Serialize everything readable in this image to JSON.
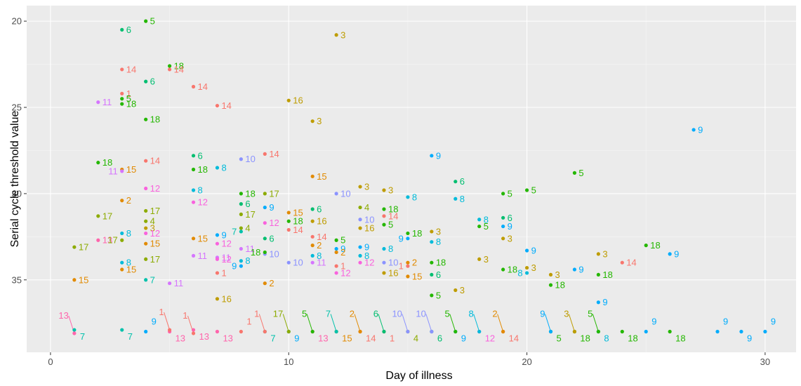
{
  "chart_data": {
    "type": "scatter",
    "title": "",
    "xlabel": "Day of illness",
    "ylabel": "Serial cycle threshold value",
    "xlim": [
      -1,
      31.3
    ],
    "ylim": [
      19.1,
      39.2
    ],
    "y_reversed": true,
    "x_ticks": [
      0,
      10,
      20,
      30
    ],
    "y_ticks": [
      20,
      25,
      30,
      35
    ],
    "grid": true,
    "legend": "none",
    "point_label_field": "patient",
    "colors": {
      "1": "#F8766D",
      "2": "#E18A00",
      "3": "#BE9C00",
      "4": "#8CAB00",
      "5": "#24B700",
      "6": "#00BE70",
      "7": "#00C1AB",
      "8": "#00BBDA",
      "9": "#00ACFC",
      "10": "#8B93FF",
      "11": "#D575FE",
      "12": "#F962DD",
      "13": "#FF65AC",
      "14": "#F8766D",
      "15": "#E18A00",
      "16": "#BE9C00",
      "17": "#8CAB00",
      "18": "#24B700"
    },
    "points": [
      {
        "x": 3,
        "y": 20.5,
        "patient": "6"
      },
      {
        "x": 4,
        "y": 20.0,
        "patient": "5"
      },
      {
        "x": 12,
        "y": 20.8,
        "patient": "3"
      },
      {
        "x": 3,
        "y": 22.8,
        "patient": "14"
      },
      {
        "x": 5,
        "y": 22.6,
        "patient": "18"
      },
      {
        "x": 5,
        "y": 22.8,
        "patient": "14"
      },
      {
        "x": 4,
        "y": 23.5,
        "patient": "6"
      },
      {
        "x": 6,
        "y": 23.8,
        "patient": "14"
      },
      {
        "x": 3,
        "y": 24.2,
        "patient": "1"
      },
      {
        "x": 3,
        "y": 24.5,
        "patient": "5"
      },
      {
        "x": 2,
        "y": 24.7,
        "patient": "11"
      },
      {
        "x": 3,
        "y": 24.8,
        "patient": "18"
      },
      {
        "x": 7,
        "y": 24.9,
        "patient": "14"
      },
      {
        "x": 10,
        "y": 24.6,
        "patient": "16"
      },
      {
        "x": 4,
        "y": 25.7,
        "patient": "18"
      },
      {
        "x": 11,
        "y": 25.8,
        "patient": "3"
      },
      {
        "x": 27,
        "y": 26.3,
        "patient": "9"
      },
      {
        "x": 6,
        "y": 27.8,
        "patient": "6"
      },
      {
        "x": 9,
        "y": 27.7,
        "patient": "14"
      },
      {
        "x": 8,
        "y": 28.0,
        "patient": "10"
      },
      {
        "x": 2,
        "y": 28.2,
        "patient": "18"
      },
      {
        "x": 4,
        "y": 28.1,
        "patient": "14"
      },
      {
        "x": 16,
        "y": 27.8,
        "patient": "9"
      },
      {
        "x": 3,
        "y": 28.6,
        "patient": "15"
      },
      {
        "x": 6,
        "y": 28.6,
        "patient": "18"
      },
      {
        "x": 7,
        "y": 28.5,
        "patient": "8"
      },
      {
        "x": 3,
        "y": 28.7,
        "patient": "11"
      },
      {
        "x": 22,
        "y": 28.8,
        "patient": "5"
      },
      {
        "x": 11,
        "y": 29.0,
        "patient": "15"
      },
      {
        "x": 17,
        "y": 29.3,
        "patient": "6"
      },
      {
        "x": 4,
        "y": 29.7,
        "patient": "12"
      },
      {
        "x": 6,
        "y": 29.8,
        "patient": "8"
      },
      {
        "x": 13,
        "y": 29.6,
        "patient": "3"
      },
      {
        "x": 14,
        "y": 29.8,
        "patient": "3"
      },
      {
        "x": 20,
        "y": 29.8,
        "patient": "5"
      },
      {
        "x": 19,
        "y": 30.0,
        "patient": "5"
      },
      {
        "x": 12,
        "y": 30.0,
        "patient": "10"
      },
      {
        "x": 8,
        "y": 30.0,
        "patient": "18"
      },
      {
        "x": 9,
        "y": 30.0,
        "patient": "17"
      },
      {
        "x": 15,
        "y": 30.2,
        "patient": "8"
      },
      {
        "x": 17,
        "y": 30.3,
        "patient": "8"
      },
      {
        "x": 3,
        "y": 30.4,
        "patient": "2"
      },
      {
        "x": 6,
        "y": 30.5,
        "patient": "12"
      },
      {
        "x": 8,
        "y": 30.6,
        "patient": "6"
      },
      {
        "x": 9,
        "y": 30.8,
        "patient": "9"
      },
      {
        "x": 13,
        "y": 30.8,
        "patient": "4"
      },
      {
        "x": 14,
        "y": 30.9,
        "patient": "18"
      },
      {
        "x": 4,
        "y": 31.0,
        "patient": "17"
      },
      {
        "x": 10,
        "y": 31.1,
        "patient": "15"
      },
      {
        "x": 11,
        "y": 30.9,
        "patient": "6"
      },
      {
        "x": 8,
        "y": 31.2,
        "patient": "17"
      },
      {
        "x": 2,
        "y": 31.3,
        "patient": "17"
      },
      {
        "x": 19,
        "y": 31.4,
        "patient": "6"
      },
      {
        "x": 13,
        "y": 31.5,
        "patient": "10"
      },
      {
        "x": 14,
        "y": 31.3,
        "patient": "14"
      },
      {
        "x": 18,
        "y": 31.5,
        "patient": "8"
      },
      {
        "x": 4,
        "y": 31.6,
        "patient": "4"
      },
      {
        "x": 10,
        "y": 31.6,
        "patient": "18"
      },
      {
        "x": 9,
        "y": 31.7,
        "patient": "12"
      },
      {
        "x": 11,
        "y": 31.6,
        "patient": "16"
      },
      {
        "x": 14,
        "y": 31.8,
        "patient": "5"
      },
      {
        "x": 18,
        "y": 31.9,
        "patient": "5"
      },
      {
        "x": 19,
        "y": 31.9,
        "patient": "9"
      },
      {
        "x": 8,
        "y": 32.0,
        "patient": "4"
      },
      {
        "x": 4,
        "y": 32.0,
        "patient": "3"
      },
      {
        "x": 8,
        "y": 32.2,
        "patient": "7"
      },
      {
        "x": 7,
        "y": 32.4,
        "patient": "9"
      },
      {
        "x": 4,
        "y": 32.3,
        "patient": "12"
      },
      {
        "x": 3,
        "y": 32.3,
        "patient": "8"
      },
      {
        "x": 10,
        "y": 32.1,
        "patient": "14"
      },
      {
        "x": 13,
        "y": 32.0,
        "patient": "16"
      },
      {
        "x": 15,
        "y": 32.3,
        "patient": "18"
      },
      {
        "x": 16,
        "y": 32.2,
        "patient": "3"
      },
      {
        "x": 2,
        "y": 32.7,
        "patient": "13"
      },
      {
        "x": 3,
        "y": 32.7,
        "patient": "17"
      },
      {
        "x": 6,
        "y": 32.6,
        "patient": "15"
      },
      {
        "x": 9,
        "y": 32.6,
        "patient": "6"
      },
      {
        "x": 11,
        "y": 32.5,
        "patient": "14"
      },
      {
        "x": 12,
        "y": 32.7,
        "patient": "5"
      },
      {
        "x": 15,
        "y": 32.6,
        "patient": "9"
      },
      {
        "x": 16,
        "y": 32.8,
        "patient": "8"
      },
      {
        "x": 19,
        "y": 32.6,
        "patient": "3"
      },
      {
        "x": 1,
        "y": 33.1,
        "patient": "17"
      },
      {
        "x": 4,
        "y": 32.9,
        "patient": "15"
      },
      {
        "x": 7,
        "y": 32.9,
        "patient": "12"
      },
      {
        "x": 11,
        "y": 33.0,
        "patient": "2"
      },
      {
        "x": 12,
        "y": 33.2,
        "patient": "9"
      },
      {
        "x": 13,
        "y": 33.1,
        "patient": "9"
      },
      {
        "x": 14,
        "y": 33.2,
        "patient": "8"
      },
      {
        "x": 20,
        "y": 33.3,
        "patient": "9"
      },
      {
        "x": 25,
        "y": 33.0,
        "patient": "18"
      },
      {
        "x": 8,
        "y": 33.2,
        "patient": "11"
      },
      {
        "x": 9,
        "y": 33.5,
        "patient": "10"
      },
      {
        "x": 9,
        "y": 33.4,
        "patient": "18"
      },
      {
        "x": 12,
        "y": 33.4,
        "patient": "2"
      },
      {
        "x": 13,
        "y": 33.6,
        "patient": "8"
      },
      {
        "x": 11,
        "y": 33.6,
        "patient": "8"
      },
      {
        "x": 23,
        "y": 33.5,
        "patient": "3"
      },
      {
        "x": 26,
        "y": 33.5,
        "patient": "9"
      },
      {
        "x": 4,
        "y": 33.8,
        "patient": "17"
      },
      {
        "x": 6,
        "y": 33.6,
        "patient": "11"
      },
      {
        "x": 7,
        "y": 33.7,
        "patient": "11"
      },
      {
        "x": 7,
        "y": 33.8,
        "patient": "12"
      },
      {
        "x": 3,
        "y": 34.0,
        "patient": "8"
      },
      {
        "x": 8,
        "y": 33.9,
        "patient": "8"
      },
      {
        "x": 10,
        "y": 34.0,
        "patient": "10"
      },
      {
        "x": 11,
        "y": 34.0,
        "patient": "11"
      },
      {
        "x": 13,
        "y": 34.0,
        "patient": "12"
      },
      {
        "x": 14,
        "y": 34.0,
        "patient": "10"
      },
      {
        "x": 15,
        "y": 34.0,
        "patient": "2"
      },
      {
        "x": 16,
        "y": 34.0,
        "patient": "18"
      },
      {
        "x": 18,
        "y": 33.8,
        "patient": "3"
      },
      {
        "x": 24,
        "y": 34.0,
        "patient": "14"
      },
      {
        "x": 3,
        "y": 34.4,
        "patient": "15"
      },
      {
        "x": 8,
        "y": 34.2,
        "patient": "9"
      },
      {
        "x": 12,
        "y": 34.2,
        "patient": "1"
      },
      {
        "x": 15,
        "y": 34.2,
        "patient": "1"
      },
      {
        "x": 19,
        "y": 34.4,
        "patient": "18"
      },
      {
        "x": 22,
        "y": 34.4,
        "patient": "9"
      },
      {
        "x": 20,
        "y": 34.3,
        "patient": "3"
      },
      {
        "x": 7,
        "y": 34.6,
        "patient": "1"
      },
      {
        "x": 12,
        "y": 34.6,
        "patient": "12"
      },
      {
        "x": 14,
        "y": 34.6,
        "patient": "16"
      },
      {
        "x": 15,
        "y": 34.8,
        "patient": "15"
      },
      {
        "x": 16,
        "y": 34.7,
        "patient": "6"
      },
      {
        "x": 20,
        "y": 34.6,
        "patient": "8"
      },
      {
        "x": 21,
        "y": 34.7,
        "patient": "3"
      },
      {
        "x": 23,
        "y": 34.7,
        "patient": "18"
      },
      {
        "x": 1,
        "y": 35.0,
        "patient": "15"
      },
      {
        "x": 4,
        "y": 35.0,
        "patient": "7"
      },
      {
        "x": 5,
        "y": 35.2,
        "patient": "11"
      },
      {
        "x": 9,
        "y": 35.2,
        "patient": "2"
      },
      {
        "x": 21,
        "y": 35.3,
        "patient": "18"
      },
      {
        "x": 17,
        "y": 35.6,
        "patient": "3"
      },
      {
        "x": 7,
        "y": 36.1,
        "patient": "16"
      },
      {
        "x": 16,
        "y": 35.9,
        "patient": "5"
      },
      {
        "x": 23,
        "y": 36.3,
        "patient": "9"
      },
      {
        "x": 1,
        "y": 37.9,
        "patient": "7"
      },
      {
        "x": 1,
        "y": 38.1,
        "patient": "13"
      },
      {
        "x": 3,
        "y": 37.9,
        "patient": "7"
      },
      {
        "x": 4,
        "y": 38.0,
        "patient": "9"
      },
      {
        "x": 5,
        "y": 38.0,
        "patient": "13"
      },
      {
        "x": 5,
        "y": 37.9,
        "patient": "1"
      },
      {
        "x": 6,
        "y": 37.9,
        "patient": "13"
      },
      {
        "x": 6,
        "y": 38.1,
        "patient": "1"
      },
      {
        "x": 7,
        "y": 38.0,
        "patient": "13"
      },
      {
        "x": 8,
        "y": 38.0,
        "patient": "1"
      },
      {
        "x": 9,
        "y": 38.0,
        "patient": "7"
      },
      {
        "x": 9,
        "y": 38.0,
        "patient": "1"
      },
      {
        "x": 10,
        "y": 38.0,
        "patient": "9"
      },
      {
        "x": 10,
        "y": 38.0,
        "patient": "17"
      },
      {
        "x": 11,
        "y": 38.0,
        "patient": "13"
      },
      {
        "x": 11,
        "y": 38.0,
        "patient": "5"
      },
      {
        "x": 12,
        "y": 38.0,
        "patient": "15"
      },
      {
        "x": 12,
        "y": 38.0,
        "patient": "7"
      },
      {
        "x": 13,
        "y": 38.0,
        "patient": "14"
      },
      {
        "x": 13,
        "y": 38.0,
        "patient": "2"
      },
      {
        "x": 14,
        "y": 38.0,
        "patient": "1"
      },
      {
        "x": 14,
        "y": 38.0,
        "patient": "6"
      },
      {
        "x": 15,
        "y": 38.0,
        "patient": "4"
      },
      {
        "x": 15,
        "y": 38.0,
        "patient": "10"
      },
      {
        "x": 16,
        "y": 38.0,
        "patient": "6"
      },
      {
        "x": 16,
        "y": 38.0,
        "patient": "10"
      },
      {
        "x": 17,
        "y": 38.0,
        "patient": "9"
      },
      {
        "x": 17,
        "y": 38.0,
        "patient": "5"
      },
      {
        "x": 18,
        "y": 38.0,
        "patient": "12"
      },
      {
        "x": 18,
        "y": 38.0,
        "patient": "8"
      },
      {
        "x": 19,
        "y": 38.0,
        "patient": "14"
      },
      {
        "x": 19,
        "y": 38.0,
        "patient": "2"
      },
      {
        "x": 21,
        "y": 38.0,
        "patient": "5"
      },
      {
        "x": 21,
        "y": 38.0,
        "patient": "9"
      },
      {
        "x": 22,
        "y": 38.0,
        "patient": "18"
      },
      {
        "x": 22,
        "y": 38.0,
        "patient": "3"
      },
      {
        "x": 23,
        "y": 38.0,
        "patient": "8"
      },
      {
        "x": 23,
        "y": 38.0,
        "patient": "5"
      },
      {
        "x": 24,
        "y": 38.0,
        "patient": "18"
      },
      {
        "x": 25,
        "y": 38.0,
        "patient": "9"
      },
      {
        "x": 26,
        "y": 38.0,
        "patient": "18"
      },
      {
        "x": 28,
        "y": 38.0,
        "patient": "9"
      },
      {
        "x": 29,
        "y": 38.0,
        "patient": "9"
      },
      {
        "x": 30,
        "y": 38.0,
        "patient": "9"
      }
    ]
  }
}
